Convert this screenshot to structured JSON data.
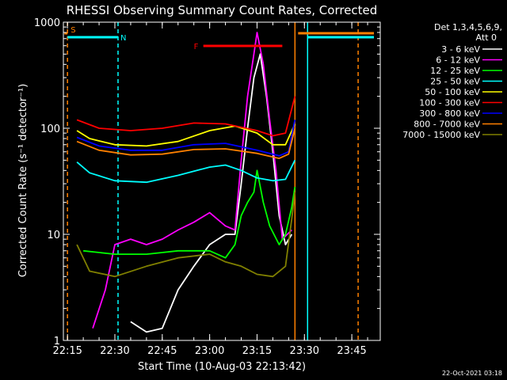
{
  "chart_data": {
    "type": "line",
    "title": "RHESSI Observing Summary Count Rates, Corrected",
    "xlabel": "Start Time (10-Aug-03 22:13:42)",
    "ylabel": "Corrected Count Rate (s⁻¹ detector⁻¹)",
    "x_start": "22:13:42",
    "xlim": [
      "22:13:42",
      "23:54:00"
    ],
    "ylim": [
      1,
      1000
    ],
    "yscale": "log",
    "x_ticks": [
      "22:15",
      "22:30",
      "22:45",
      "23:00",
      "23:15",
      "23:30",
      "23:45"
    ],
    "y_ticks": [
      {
        "value": 1,
        "label": "1"
      },
      {
        "value": 10,
        "label": "10"
      },
      {
        "value": 100,
        "label": "100"
      },
      {
        "value": 1000,
        "label": "1000"
      }
    ],
    "legend_position": "right",
    "legend_header": [
      "Det 1,3,4,5,6,9,",
      "Att 0"
    ],
    "timestamp": "22-Oct-2021 03:18",
    "series": [
      {
        "name": "3 - 6 keV",
        "color": "#ffffff",
        "points": [
          [
            "22:35",
            1.5
          ],
          [
            "22:40",
            1.2
          ],
          [
            "22:45",
            1.3
          ],
          [
            "22:50",
            3
          ],
          [
            "22:55",
            5
          ],
          [
            "23:00",
            8
          ],
          [
            "23:05",
            10
          ],
          [
            "23:08",
            10
          ],
          [
            "23:10",
            30
          ],
          [
            "23:12",
            100
          ],
          [
            "23:14",
            300
          ],
          [
            "23:16",
            500
          ],
          [
            "23:18",
            200
          ],
          [
            "23:20",
            60
          ],
          [
            "23:22",
            15
          ],
          [
            "23:24",
            8
          ],
          [
            "23:26",
            10
          ]
        ]
      },
      {
        "name": "6 - 12 keV",
        "color": "#ff00ff",
        "points": [
          [
            "22:23",
            1.3
          ],
          [
            "22:27",
            3
          ],
          [
            "22:30",
            8
          ],
          [
            "22:35",
            9
          ],
          [
            "22:40",
            8
          ],
          [
            "22:45",
            9
          ],
          [
            "22:50",
            11
          ],
          [
            "22:55",
            13
          ],
          [
            "23:00",
            16
          ],
          [
            "23:05",
            12
          ],
          [
            "23:08",
            11
          ],
          [
            "23:10",
            50
          ],
          [
            "23:12",
            200
          ],
          [
            "23:14",
            500
          ],
          [
            "23:15",
            800
          ],
          [
            "23:17",
            400
          ],
          [
            "23:19",
            120
          ],
          [
            "23:21",
            40
          ],
          [
            "23:23",
            9
          ],
          [
            "23:26",
            11
          ]
        ]
      },
      {
        "name": "12 - 25 keV",
        "color": "#00ff00",
        "points": [
          [
            "22:20",
            7
          ],
          [
            "22:30",
            6.5
          ],
          [
            "22:40",
            6.5
          ],
          [
            "22:50",
            7
          ],
          [
            "23:00",
            7
          ],
          [
            "23:05",
            6
          ],
          [
            "23:08",
            8
          ],
          [
            "23:10",
            15
          ],
          [
            "23:12",
            20
          ],
          [
            "23:14",
            25
          ],
          [
            "23:15",
            40
          ],
          [
            "23:17",
            20
          ],
          [
            "23:19",
            12
          ],
          [
            "23:22",
            8
          ],
          [
            "23:24",
            10
          ],
          [
            "23:26",
            18
          ],
          [
            "23:27",
            28
          ]
        ]
      },
      {
        "name": "25 - 50 keV",
        "color": "#00ffff",
        "points": [
          [
            "22:18",
            48
          ],
          [
            "22:22",
            38
          ],
          [
            "22:30",
            32
          ],
          [
            "22:40",
            31
          ],
          [
            "22:50",
            36
          ],
          [
            "23:00",
            43
          ],
          [
            "23:05",
            45
          ],
          [
            "23:10",
            40
          ],
          [
            "23:15",
            34
          ],
          [
            "23:20",
            32
          ],
          [
            "23:24",
            33
          ],
          [
            "23:27",
            50
          ]
        ]
      },
      {
        "name": "50 - 100 keV",
        "color": "#ffff00",
        "points": [
          [
            "22:18",
            95
          ],
          [
            "22:22",
            80
          ],
          [
            "22:30",
            70
          ],
          [
            "22:40",
            68
          ],
          [
            "22:50",
            75
          ],
          [
            "23:00",
            95
          ],
          [
            "23:08",
            105
          ],
          [
            "23:15",
            90
          ],
          [
            "23:20",
            70
          ],
          [
            "23:24",
            70
          ],
          [
            "23:27",
            110
          ]
        ]
      },
      {
        "name": "100 - 300 keV",
        "color": "#ff0000",
        "points": [
          [
            "22:18",
            120
          ],
          [
            "22:25",
            100
          ],
          [
            "22:35",
            95
          ],
          [
            "22:45",
            100
          ],
          [
            "22:55",
            112
          ],
          [
            "23:05",
            110
          ],
          [
            "23:15",
            95
          ],
          [
            "23:20",
            85
          ],
          [
            "23:24",
            90
          ],
          [
            "23:27",
            200
          ]
        ]
      },
      {
        "name": "300 - 800 keV",
        "color": "#0000ff",
        "points": [
          [
            "22:18",
            82
          ],
          [
            "22:25",
            68
          ],
          [
            "22:35",
            62
          ],
          [
            "22:45",
            62
          ],
          [
            "22:55",
            70
          ],
          [
            "23:05",
            72
          ],
          [
            "23:15",
            62
          ],
          [
            "23:22",
            55
          ],
          [
            "23:25",
            60
          ],
          [
            "23:27",
            120
          ]
        ]
      },
      {
        "name": "800 - 7000 keV",
        "color": "#ff8000",
        "points": [
          [
            "22:18",
            75
          ],
          [
            "22:25",
            62
          ],
          [
            "22:35",
            56
          ],
          [
            "22:45",
            57
          ],
          [
            "22:55",
            63
          ],
          [
            "23:05",
            64
          ],
          [
            "23:15",
            58
          ],
          [
            "23:22",
            52
          ],
          [
            "23:25",
            57
          ],
          [
            "23:27",
            100
          ]
        ]
      },
      {
        "name": "7000 - 15000 keV",
        "color": "#808000",
        "points": [
          [
            "22:18",
            8
          ],
          [
            "22:22",
            4.5
          ],
          [
            "22:30",
            4
          ],
          [
            "22:40",
            5
          ],
          [
            "22:50",
            6
          ],
          [
            "23:00",
            6.5
          ],
          [
            "23:05",
            5.5
          ],
          [
            "23:10",
            5
          ],
          [
            "23:15",
            4.2
          ],
          [
            "23:20",
            4
          ],
          [
            "23:24",
            5
          ],
          [
            "23:26",
            14
          ],
          [
            "23:27",
            25
          ]
        ]
      }
    ],
    "flag_bars": [
      {
        "label": "S",
        "color": "#ff8000",
        "start": "22:14",
        "end": "22:15"
      },
      {
        "label": "N",
        "color": "#00ffff",
        "start": "22:15",
        "end": "22:31"
      },
      {
        "label": "F",
        "color": "#ff0000",
        "start": "22:58",
        "end": "23:23"
      },
      {
        "label": "",
        "color": "#00ffff",
        "start": "23:31",
        "end": "23:52"
      },
      {
        "label": "",
        "color": "#ff8000",
        "start": "23:28",
        "end": "23:52"
      }
    ],
    "vertical_markers": [
      {
        "time": "22:15",
        "color": "#ff8000",
        "style": "dashed"
      },
      {
        "time": "22:31",
        "color": "#00ffff",
        "style": "dashed"
      },
      {
        "time": "23:27",
        "color": "#ff8000",
        "style": "solid"
      },
      {
        "time": "23:31",
        "color": "#00ffff",
        "style": "solid"
      },
      {
        "time": "23:47",
        "color": "#ff8000",
        "style": "dashed"
      }
    ]
  }
}
